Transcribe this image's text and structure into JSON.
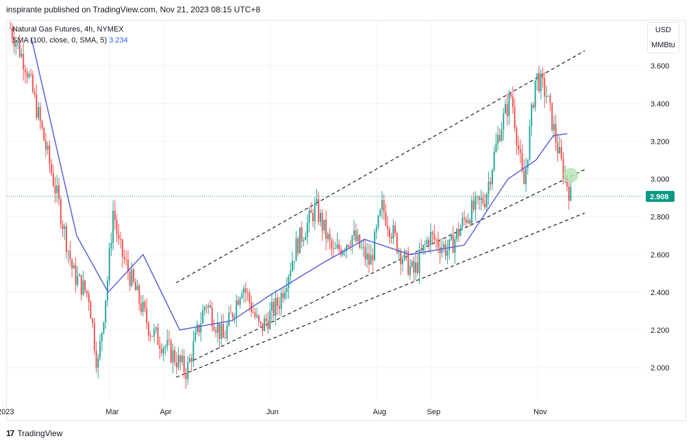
{
  "header": {
    "publisher_line": "inspirante published on TradingView.com, Nov 21, 2023 08:15 UTC+8"
  },
  "legend": {
    "symbol_line": "Natural Gas Futures, 4h, NYMEX",
    "sma_label": "SMA (100, close, 0, SMA, 5)",
    "sma_value": "3.234"
  },
  "unit_button": {
    "currency": "USD",
    "unit": "MMBtu"
  },
  "footer": {
    "brand": "TradingView",
    "logo_text": "17"
  },
  "colors": {
    "up": "#26a69a",
    "down": "#ef5350",
    "sma": "#5b5fd8",
    "price_line": "#089981",
    "grid": "#f0f3fa"
  },
  "chart_data": {
    "type": "candlestick",
    "title": "Natural Gas Futures, 4h, NYMEX",
    "ylim": [
      1.83,
      3.84
    ],
    "y_ticks": [
      "2.000",
      "2.200",
      "2.400",
      "2.600",
      "2.800",
      "3.000",
      "3.200",
      "3.400",
      "3.600"
    ],
    "x_ticks": [
      {
        "label": "2023",
        "date": "2023-01-01"
      },
      {
        "label": "Mar",
        "date": "2023-03-01"
      },
      {
        "label": "Apr",
        "date": "2023-04-01"
      },
      {
        "label": "Jun",
        "date": "2023-06-01"
      },
      {
        "label": "Aug",
        "date": "2023-08-01"
      },
      {
        "label": "Sep",
        "date": "2023-09-01"
      },
      {
        "label": "Nov",
        "date": "2023-11-01"
      }
    ],
    "xlim": [
      "2023-01-01",
      "2023-12-31"
    ],
    "last_price": "2.908",
    "series": [
      {
        "name": "Natural Gas Futures",
        "kind": "price-path",
        "points": [
          [
            "2023-01-03",
            3.8
          ],
          [
            "2023-01-12",
            3.6
          ],
          [
            "2023-01-20",
            3.3
          ],
          [
            "2023-01-30",
            2.9
          ],
          [
            "2023-02-08",
            2.5
          ],
          [
            "2023-02-17",
            2.38
          ],
          [
            "2023-02-22",
            2.0
          ],
          [
            "2023-02-28",
            2.5
          ],
          [
            "2023-03-03",
            2.85
          ],
          [
            "2023-03-06",
            2.65
          ],
          [
            "2023-03-16",
            2.4
          ],
          [
            "2023-03-24",
            2.2
          ],
          [
            "2023-04-03",
            2.1
          ],
          [
            "2023-04-14",
            1.98
          ],
          [
            "2023-04-25",
            2.35
          ],
          [
            "2023-05-05",
            2.15
          ],
          [
            "2023-05-16",
            2.45
          ],
          [
            "2023-05-26",
            2.2
          ],
          [
            "2023-06-06",
            2.35
          ],
          [
            "2023-06-16",
            2.65
          ],
          [
            "2023-06-27",
            2.85
          ],
          [
            "2023-07-07",
            2.6
          ],
          [
            "2023-07-18",
            2.7
          ],
          [
            "2023-07-28",
            2.55
          ],
          [
            "2023-08-04",
            2.85
          ],
          [
            "2023-08-15",
            2.6
          ],
          [
            "2023-08-22",
            2.5
          ],
          [
            "2023-08-31",
            2.7
          ],
          [
            "2023-09-11",
            2.62
          ],
          [
            "2023-09-21",
            2.8
          ],
          [
            "2023-10-02",
            2.9
          ],
          [
            "2023-10-10",
            3.25
          ],
          [
            "2023-10-17",
            3.45
          ],
          [
            "2023-10-24",
            2.95
          ],
          [
            "2023-10-31",
            3.55
          ],
          [
            "2023-11-06",
            3.45
          ],
          [
            "2023-11-14",
            3.1
          ],
          [
            "2023-11-20",
            2.91
          ]
        ]
      },
      {
        "name": "SMA (100, close, 0, SMA, 5)",
        "points": [
          [
            "2023-01-15",
            3.75
          ],
          [
            "2023-02-10",
            2.7
          ],
          [
            "2023-02-28",
            2.4
          ],
          [
            "2023-03-20",
            2.6
          ],
          [
            "2023-04-10",
            2.2
          ],
          [
            "2023-05-10",
            2.25
          ],
          [
            "2023-05-31",
            2.38
          ],
          [
            "2023-06-30",
            2.55
          ],
          [
            "2023-07-25",
            2.68
          ],
          [
            "2023-08-20",
            2.6
          ],
          [
            "2023-09-20",
            2.65
          ],
          [
            "2023-10-15",
            3.0
          ],
          [
            "2023-10-31",
            3.1
          ],
          [
            "2023-11-10",
            3.23
          ],
          [
            "2023-11-18",
            3.24
          ]
        ]
      }
    ],
    "trend_lines": [
      {
        "style": "dashed",
        "from": [
          "2023-04-08",
          2.45
        ],
        "to": [
          "2023-11-28",
          3.68
        ]
      },
      {
        "style": "dashed",
        "from": [
          "2023-04-18",
          2.04
        ],
        "to": [
          "2023-11-28",
          3.05
        ]
      },
      {
        "style": "dashed",
        "from": [
          "2023-04-08",
          1.95
        ],
        "to": [
          "2023-11-28",
          2.82
        ]
      }
    ],
    "annotations": [
      {
        "shape": "circle",
        "at": [
          "2023-11-20",
          3.02
        ],
        "color": "#b7e4b0"
      }
    ]
  }
}
